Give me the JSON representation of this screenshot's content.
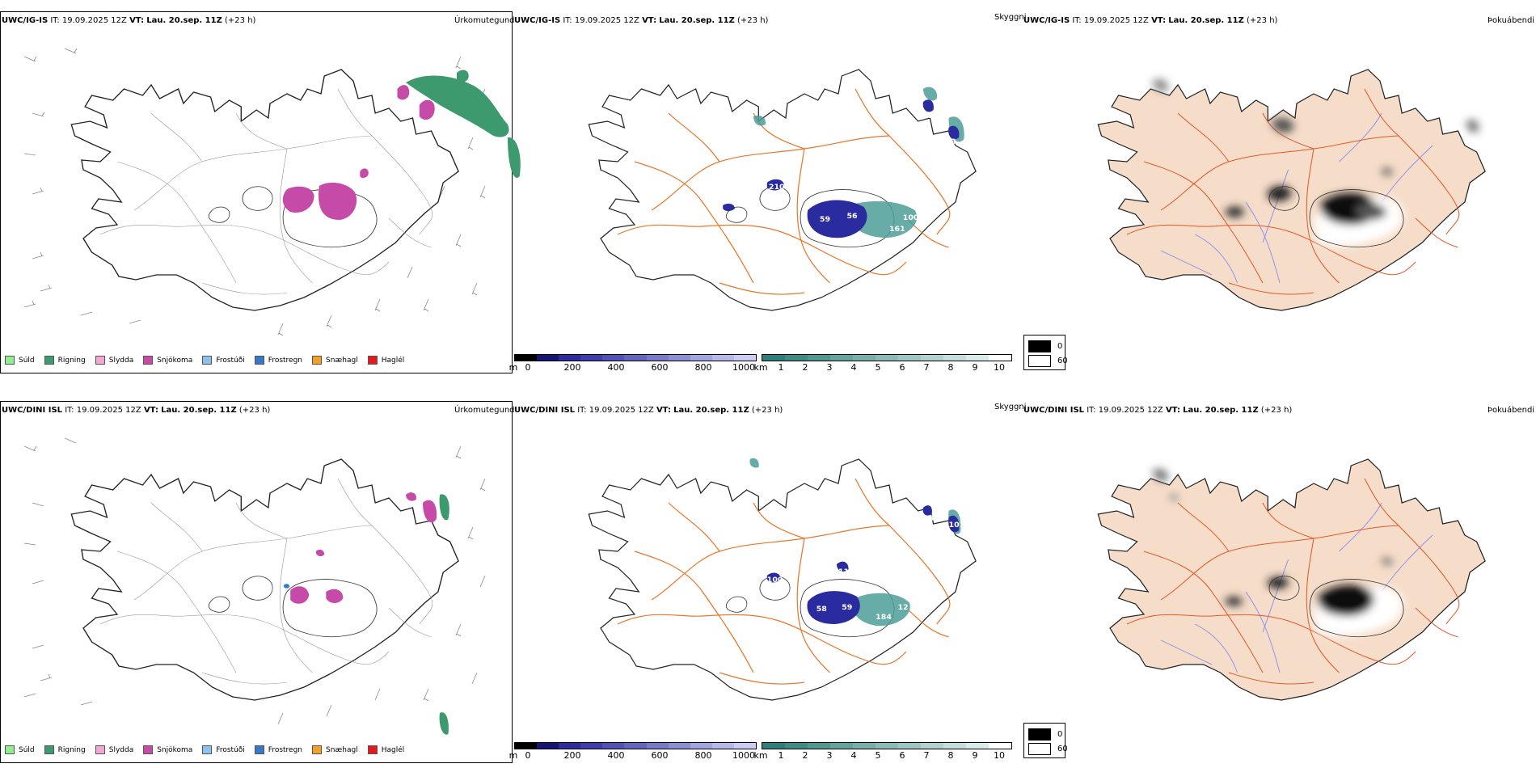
{
  "rows": [
    {
      "model": "UWC/IG-IS",
      "it_label": "IT:",
      "it_value": "19.09.2025 12Z",
      "vt_label": "VT:",
      "vt_value": "Lau. 20.sep. 11Z",
      "lead": "(+23 h)",
      "cloud_numbers": [
        "71",
        "98",
        "109",
        "210",
        "59",
        "56",
        "27",
        "100",
        "161"
      ]
    },
    {
      "model": "UWC/DINI ISL",
      "it_label": "IT:",
      "it_value": "19.09.2025 12Z",
      "vt_label": "VT:",
      "vt_value": "Lau. 20.sep. 11Z",
      "lead": "(+23 h)",
      "cloud_numbers": [
        "18",
        "101",
        "11",
        "100",
        "58",
        "59",
        "12",
        "184"
      ]
    }
  ],
  "panel_titles": {
    "precip": "Úrkomutegund",
    "cloud": "Skyggni",
    "fog": "Þokuábendi"
  },
  "precip_legend": [
    {
      "label": "Súld",
      "color": "#90ee90"
    },
    {
      "label": "Rigning",
      "color": "#3c9a6e"
    },
    {
      "label": "Slydda",
      "color": "#f4a6d7"
    },
    {
      "label": "Snjókoma",
      "color": "#c64aa8"
    },
    {
      "label": "Frostúði",
      "color": "#8dc2f0"
    },
    {
      "label": "Frostregn",
      "color": "#3778c8"
    },
    {
      "label": "Snæhagl",
      "color": "#f2a02a"
    },
    {
      "label": "Haglél",
      "color": "#e31a1c"
    }
  ],
  "ceiling_scale": {
    "unit": "m",
    "ticks": [
      "0",
      "200",
      "400",
      "600",
      "800",
      "1000"
    ],
    "colors": [
      "#000000",
      "#161670",
      "#2c2c9e",
      "#3d3dab",
      "#5151b6",
      "#6565c0",
      "#7a7acb",
      "#8e8ed5",
      "#a3a3df",
      "#b8b8e9",
      "#cdcdf3"
    ]
  },
  "visibility_scale": {
    "unit": "km",
    "ticks": [
      "1",
      "2",
      "3",
      "4",
      "5",
      "6",
      "7",
      "8",
      "9",
      "10"
    ],
    "colors": [
      "#2c7f7a",
      "#3f8b86",
      "#529792",
      "#65a39e",
      "#78afab",
      "#8bbbb7",
      "#9ec7c4",
      "#b1d3d0",
      "#c4dfdd",
      "#d7ebe9"
    ]
  },
  "fog_legend": [
    {
      "label": "0",
      "color": "#000000"
    },
    {
      "label": "60",
      "color": "#ffffff"
    }
  ],
  "colors": {
    "land_fog": "#f6ddc9",
    "roads": "#e8782c",
    "rivers": "#8b8cf2",
    "snow": "#c64aa8",
    "rain": "#3c9a6e",
    "cloud_low": "#2b2ba0",
    "cloud_vis": "#4e9e98"
  }
}
